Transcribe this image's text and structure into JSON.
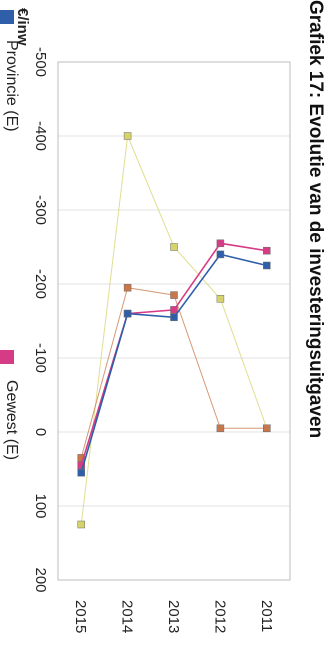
{
  "chart_data": {
    "type": "line",
    "title": "Grafiek 17: Evolutie van de investeringsuitgaven",
    "ylabel": "€/inw",
    "categories": [
      "2011",
      "2012",
      "2013",
      "2014",
      "2015"
    ],
    "yticks": [
      "200",
      "100",
      "0",
      "-100",
      "-200",
      "-300",
      "-400",
      "-500"
    ],
    "ylim": [
      -500,
      200
    ],
    "grid": true,
    "legend_position": "bottom",
    "series": [
      {
        "name": "Provincie (E)",
        "color": "#2e5fa8",
        "values": [
          -225,
          -240,
          -155,
          -160,
          55
        ]
      },
      {
        "name": "Gewest (E)",
        "color": "#d63c86",
        "values": [
          -245,
          -255,
          -165,
          -160,
          45
        ]
      },
      {
        "name": "",
        "color": "#c8774a",
        "values": [
          -5,
          -5,
          -185,
          -195,
          35
        ]
      },
      {
        "name": "",
        "color": "#d7d36c",
        "values": [
          -5,
          -180,
          -250,
          -400,
          125
        ]
      }
    ]
  }
}
